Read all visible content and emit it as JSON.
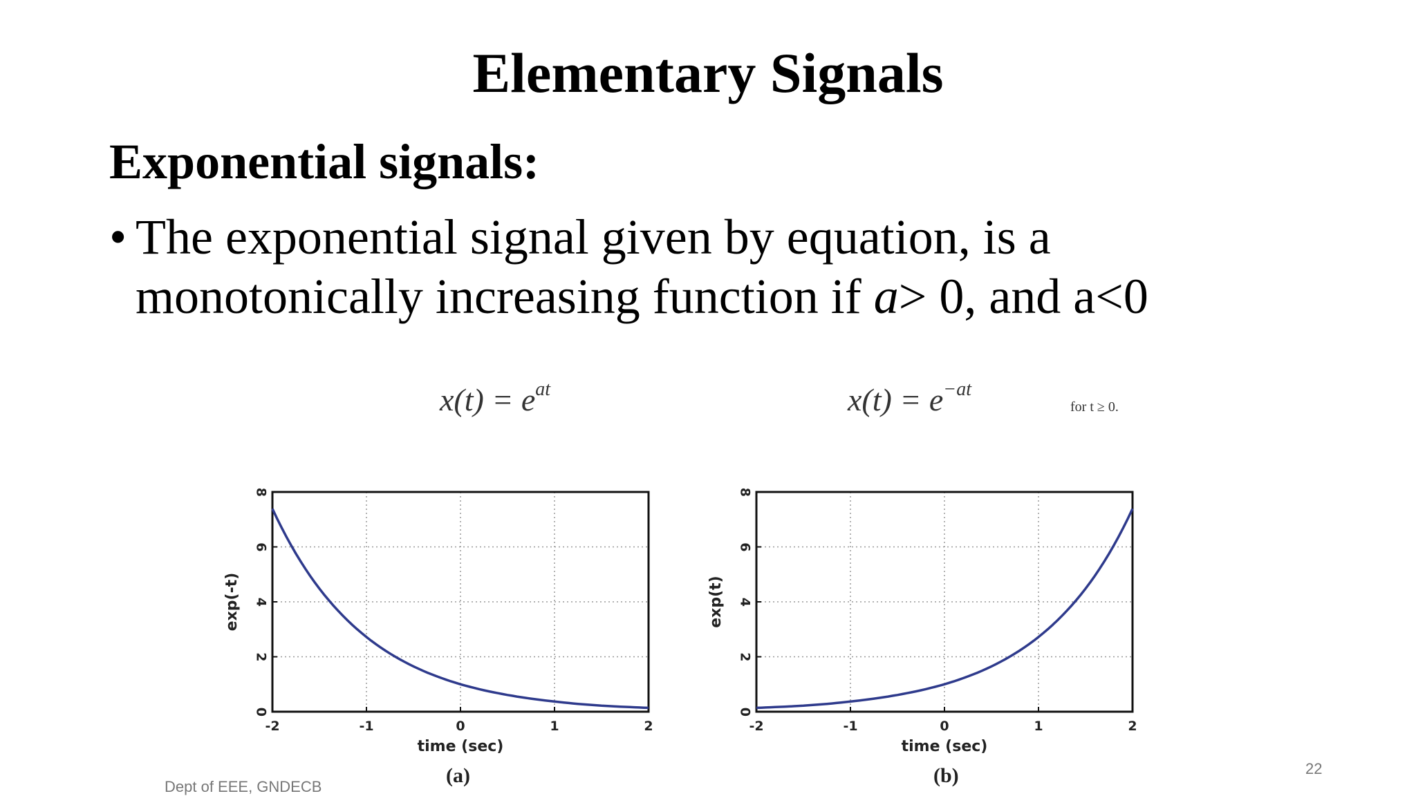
{
  "slide": {
    "title": "Elementary Signals",
    "heading": "Exponential signals:",
    "bullet_prefix": "The exponential signal given by equation, is a monotonically increasing function if ",
    "bullet_var": "a",
    "bullet_suffix": "> 0, and a<0",
    "footer": "Dept of EEE, GNDECB",
    "page_number": "22"
  },
  "formulas": {
    "left_lhs": "x(t) = e",
    "left_exp": "at",
    "right_lhs": "x(t) = e",
    "right_exp": "−at",
    "condition": "for t ≥ 0."
  },
  "chart_data": [
    {
      "type": "line",
      "panel_label": "(a)",
      "xlabel": "time (sec)",
      "ylabel": "exp(-t)",
      "xlim": [
        -2,
        2
      ],
      "ylim": [
        0,
        8
      ],
      "xticks": [
        -2,
        -1,
        0,
        1,
        2
      ],
      "yticks": [
        0,
        2,
        4,
        6,
        8
      ],
      "grid": true,
      "x": [
        -2.0,
        -1.5,
        -1.0,
        -0.5,
        0.0,
        0.5,
        1.0,
        1.5,
        2.0
      ],
      "series": [
        {
          "values": [
            7.39,
            4.48,
            2.72,
            1.65,
            1.0,
            0.61,
            0.37,
            0.22,
            0.14
          ],
          "color": "#2e3a8c"
        }
      ]
    },
    {
      "type": "line",
      "panel_label": "(b)",
      "xlabel": "time (sec)",
      "ylabel": "exp(t)",
      "xlim": [
        -2,
        2
      ],
      "ylim": [
        0,
        8
      ],
      "xticks": [
        -2,
        -1,
        0,
        1,
        2
      ],
      "yticks": [
        0,
        2,
        4,
        6,
        8
      ],
      "grid": true,
      "x": [
        -2.0,
        -1.5,
        -1.0,
        -0.5,
        0.0,
        0.5,
        1.0,
        1.5,
        2.0
      ],
      "series": [
        {
          "values": [
            0.14,
            0.22,
            0.37,
            0.61,
            1.0,
            1.65,
            2.72,
            4.48,
            7.39
          ],
          "color": "#2e3a8c"
        }
      ]
    }
  ]
}
